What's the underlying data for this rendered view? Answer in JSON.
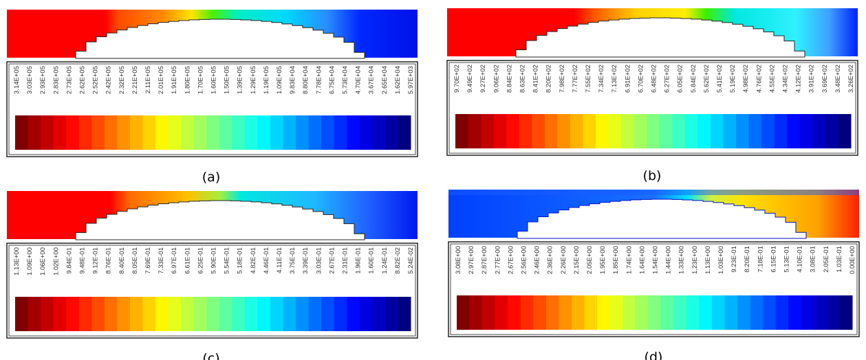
{
  "panels": [
    {
      "label": "(a)",
      "legend_labels": [
        "3.14E+05",
        "3.03E+05",
        "2.93E+05",
        "2.83E+05",
        "2.73E+05",
        "2.62E+05",
        "2.52E+05",
        "2.42E+05",
        "2.32E+05",
        "2.21E+05",
        "2.11E+05",
        "2.01E+05",
        "1.91E+05",
        "1.80E+05",
        "1.70E+05",
        "1.60E+05",
        "1.50E+05",
        "1.39E+05",
        "1.29E+05",
        "1.19E+05",
        "1.09E+05",
        "9.83E+04",
        "8.80E+04",
        "7.78E+04",
        "6.75E+04",
        "5.73E+04",
        "4.70E+04",
        "3.67E+04",
        "2.65E+04",
        "1.62E+04",
        "5.97E+03"
      ]
    },
    {
      "label": "(b)",
      "legend_labels": [
        "9.70E+02",
        "9.49E+02",
        "9.27E+02",
        "9.06E+02",
        "8.84E+02",
        "8.63E+02",
        "8.41E+02",
        "8.20E+02",
        "7.98E+02",
        "7.77E+02",
        "7.55E+02",
        "7.34E+02",
        "7.13E+02",
        "6.91E+02",
        "6.70E+02",
        "6.48E+02",
        "6.27E+02",
        "6.05E+02",
        "5.84E+02",
        "5.62E+02",
        "5.41E+02",
        "5.19E+02",
        "4.98E+02",
        "4.76E+02",
        "4.55E+02",
        "4.34E+02",
        "4.12E+02",
        "3.91E+02",
        "3.69E+02",
        "3.48E+02",
        "3.26E+02"
      ]
    },
    {
      "label": "(c)",
      "legend_labels": [
        "1.13E+00",
        "1.09E+00",
        "1.06E+00",
        "1.02E+00",
        "9.84E-01",
        "9.48E-01",
        "9.12E-01",
        "8.76E-01",
        "8.40E-01",
        "8.05E-01",
        "7.69E-01",
        "7.33E-01",
        "6.97E-01",
        "6.61E-01",
        "6.25E-01",
        "5.90E-01",
        "5.54E-01",
        "5.18E-01",
        "4.82E-01",
        "4.46E-01",
        "4.11E-01",
        "3.75E-01",
        "3.39E-01",
        "3.03E-01",
        "2.67E-01",
        "2.31E-01",
        "1.96E-01",
        "1.60E-01",
        "1.24E-01",
        "8.82E-02",
        "5.24E-02"
      ]
    },
    {
      "label": "(d)",
      "legend_labels": [
        "3.08E+00",
        "2.97E+00",
        "2.87E+00",
        "2.77E+00",
        "2.67E+00",
        "2.56E+00",
        "2.46E+00",
        "2.36E+00",
        "2.26E+00",
        "2.15E+00",
        "2.05E+00",
        "1.95E+00",
        "1.85E+00",
        "1.74E+00",
        "1.64E+00",
        "1.54E+00",
        "1.44E+00",
        "1.33E+00",
        "1.23E+00",
        "1.13E+00",
        "1.03E+00",
        "9.23E-01",
        "8.20E-01",
        "7.18E-01",
        "6.15E-01",
        "5.13E-01",
        "4.10E-01",
        "3.08E-01",
        "2.05E-01",
        "1.03E-01",
        "0.00E+00"
      ]
    }
  ]
}
